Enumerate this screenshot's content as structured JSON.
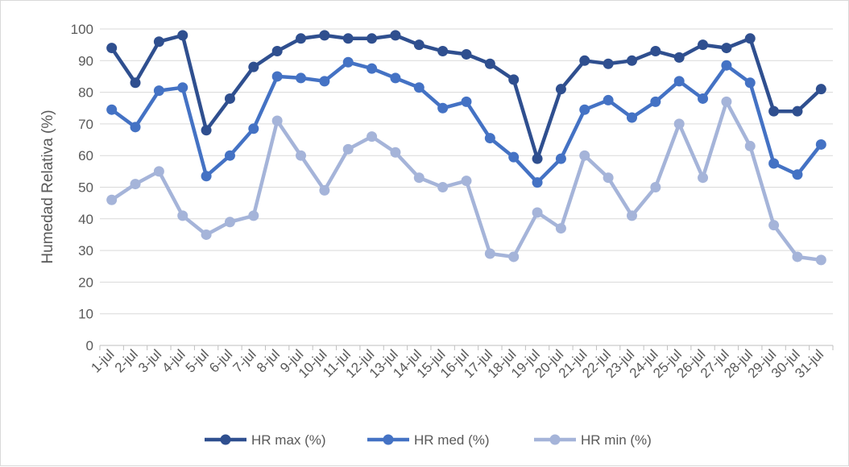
{
  "chart_data": {
    "type": "line",
    "title": "",
    "xlabel": "",
    "ylabel": "Humedad Relativa (%)",
    "ylim": [
      0,
      100
    ],
    "yticks": [
      0,
      10,
      20,
      30,
      40,
      50,
      60,
      70,
      80,
      90,
      100
    ],
    "grid": true,
    "legend_position": "bottom",
    "categories": [
      "1-jul",
      "2-jul",
      "3-jul",
      "4-jul",
      "5-jul",
      "6-jul",
      "7-jul",
      "8-jul",
      "9-jul",
      "10-jul",
      "11-jul",
      "12-jul",
      "13-jul",
      "14-jul",
      "15-jul",
      "16-jul",
      "17-jul",
      "18-jul",
      "19-jul",
      "20-jul",
      "21-jul",
      "22-jul",
      "23-jul",
      "24-jul",
      "25-jul",
      "26-jul",
      "27-jul",
      "28-jul",
      "29-jul",
      "30-jul",
      "31-jul"
    ],
    "series": [
      {
        "name": "HR max (%)",
        "color": "#2f4f8f",
        "values": [
          94,
          83,
          96,
          98,
          68,
          78,
          88,
          93,
          97,
          98,
          97,
          97,
          98,
          95,
          93,
          92,
          89,
          84,
          59,
          81,
          90,
          89,
          90,
          93,
          91,
          95,
          94,
          97,
          74,
          74,
          81
        ]
      },
      {
        "name": "HR med (%)",
        "color": "#4472c4",
        "values": [
          74.5,
          69,
          80.5,
          81.5,
          53.5,
          60,
          68.5,
          85,
          84.5,
          83.5,
          89.5,
          87.5,
          84.5,
          81.5,
          75,
          77,
          65.5,
          59.5,
          51.5,
          59,
          74.5,
          77.5,
          72,
          77,
          83.5,
          78,
          88.5,
          83,
          57.5,
          54,
          63.5
        ]
      },
      {
        "name": "HR min (%)",
        "color": "#a5b4d9",
        "values": [
          46,
          51,
          55,
          41,
          35,
          39,
          41,
          71,
          60,
          49,
          62,
          66,
          61,
          53,
          50,
          52,
          29,
          28,
          42,
          37,
          60,
          53,
          41,
          50,
          70,
          53,
          77,
          63,
          38,
          28,
          27
        ]
      }
    ]
  }
}
